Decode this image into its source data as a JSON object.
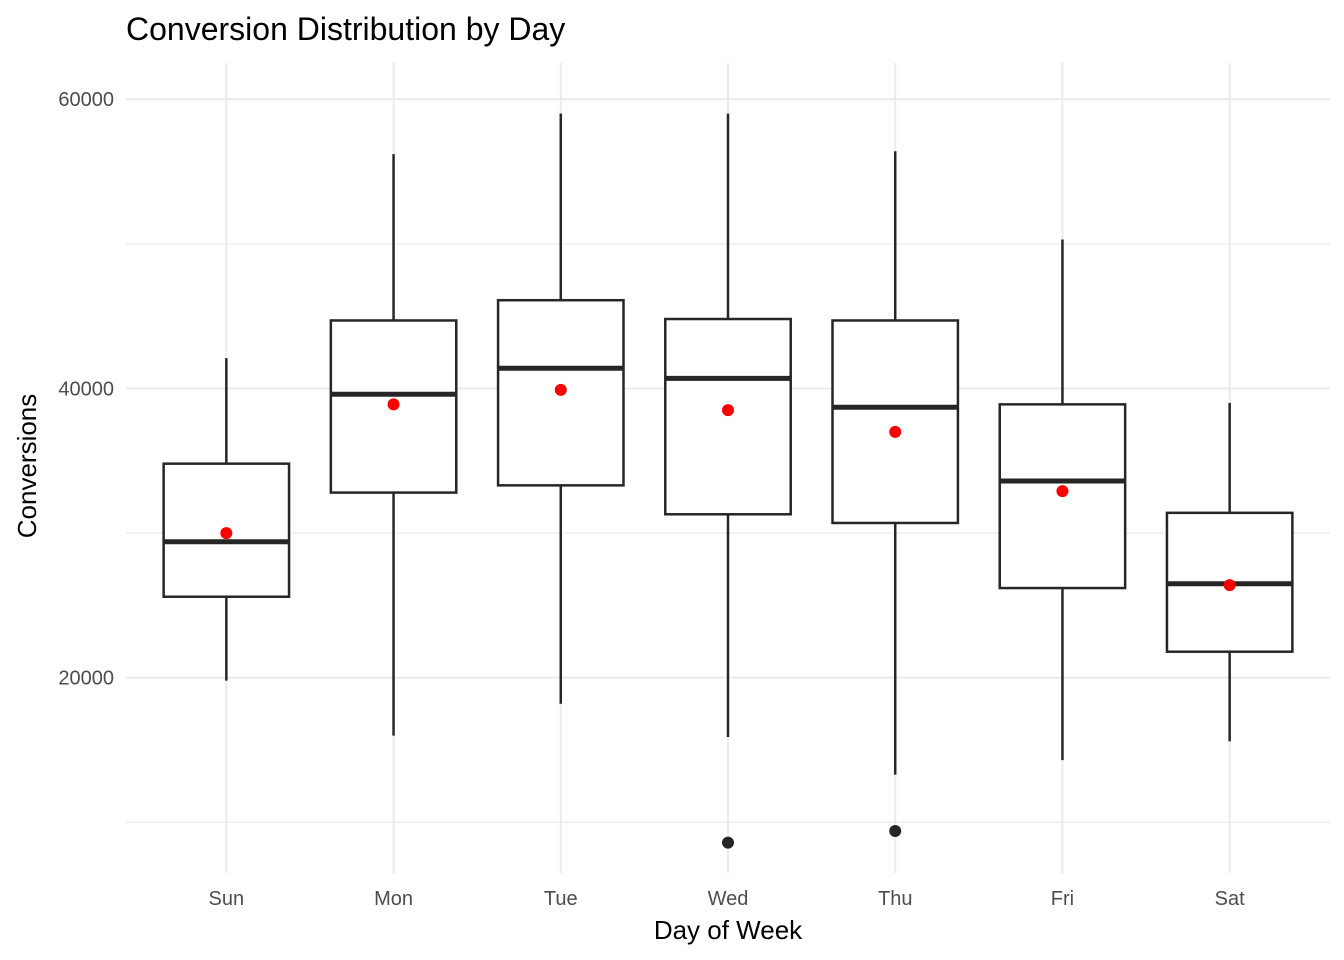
{
  "chart_data": {
    "type": "box",
    "title": "Conversion Distribution by Day",
    "xlabel": "Day of Week",
    "ylabel": "Conversions",
    "ylim": [
      6500,
      62500
    ],
    "yticks": [
      {
        "value": 20000,
        "label": "20000"
      },
      {
        "value": 40000,
        "label": "40000"
      },
      {
        "value": 60000,
        "label": "60000"
      }
    ],
    "yminor": [
      10000,
      30000,
      50000
    ],
    "grid": true,
    "legend": "none",
    "colors": {
      "box_stroke": "#262626",
      "mean_point": "#ff0000",
      "outlier_point": "#262626",
      "grid": "#ebebeb"
    },
    "categories": [
      "Sun",
      "Mon",
      "Tue",
      "Wed",
      "Thu",
      "Fri",
      "Sat"
    ],
    "boxes": [
      {
        "category": "Sun",
        "whisker_low": 19800,
        "q1": 25600,
        "median": 29400,
        "q3": 34800,
        "whisker_high": 42100,
        "mean": 30000,
        "outliers": []
      },
      {
        "category": "Mon",
        "whisker_low": 16000,
        "q1": 32800,
        "median": 39600,
        "q3": 44700,
        "whisker_high": 56200,
        "mean": 38900,
        "outliers": []
      },
      {
        "category": "Tue",
        "whisker_low": 18200,
        "q1": 33300,
        "median": 41400,
        "q3": 46100,
        "whisker_high": 59000,
        "mean": 39900,
        "outliers": []
      },
      {
        "category": "Wed",
        "whisker_low": 15900,
        "q1": 31300,
        "median": 40700,
        "q3": 44800,
        "whisker_high": 59000,
        "mean": 38500,
        "outliers": [
          8600
        ]
      },
      {
        "category": "Thu",
        "whisker_low": 13300,
        "q1": 30700,
        "median": 38700,
        "q3": 44700,
        "whisker_high": 56400,
        "mean": 37000,
        "outliers": [
          9400
        ]
      },
      {
        "category": "Fri",
        "whisker_low": 14300,
        "q1": 26200,
        "median": 33600,
        "q3": 38900,
        "whisker_high": 50300,
        "mean": 32900,
        "outliers": []
      },
      {
        "category": "Sat",
        "whisker_low": 15600,
        "q1": 21800,
        "median": 26500,
        "q3": 31400,
        "whisker_high": 39000,
        "mean": 26400,
        "outliers": []
      }
    ]
  }
}
